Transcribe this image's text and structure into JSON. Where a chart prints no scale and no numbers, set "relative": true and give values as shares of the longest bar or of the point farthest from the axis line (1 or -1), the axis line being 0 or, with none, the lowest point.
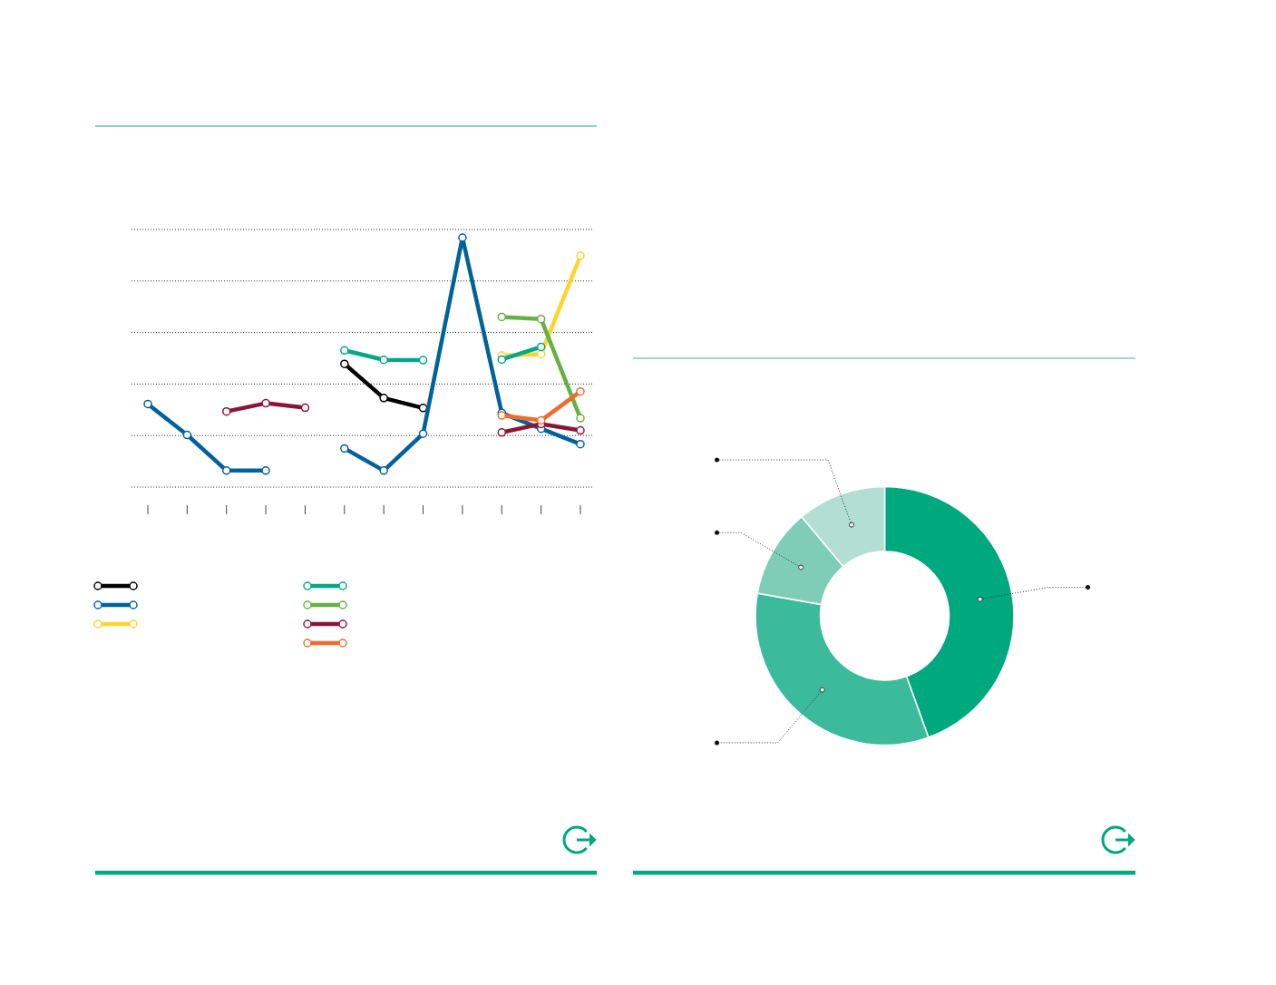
{
  "chart_data": [
    {
      "type": "line",
      "categories": [
        null,
        null,
        null,
        null,
        null,
        null,
        null,
        null,
        null,
        null,
        null,
        null
      ],
      "relative": true,
      "marker": "circle",
      "grid": "y",
      "series": [
        {
          "color": "#000000",
          "values": [
            null,
            null,
            null,
            null,
            null,
            0.494,
            0.357,
            0.317,
            null,
            null,
            null,
            null
          ]
        },
        {
          "color": "#00629b",
          "values": [
            0.333,
            0.209,
            0.066,
            0.066,
            null,
            0.155,
            0.066,
            0.214,
            1,
            0.297,
            0.234,
            0.172
          ]
        },
        {
          "color": "#ffd430",
          "values": [
            null,
            null,
            null,
            null,
            null,
            null,
            null,
            null,
            null,
            0.527,
            0.533,
            0.927
          ]
        },
        {
          "color": "#00a887",
          "values": [
            null,
            null,
            null,
            null,
            null,
            0.548,
            0.51,
            0.509,
            null,
            0.511,
            0.562,
            null
          ]
        },
        {
          "color": "#67b045",
          "values": [
            null,
            null,
            null,
            null,
            null,
            null,
            null,
            null,
            null,
            0.682,
            0.674,
            0.276
          ]
        },
        {
          "color": "#8a1538",
          "values": [
            null,
            null,
            0.303,
            0.336,
            0.318,
            null,
            null,
            null,
            null,
            0.219,
            0.253,
            0.227
          ]
        },
        {
          "color": "#f26b2c",
          "values": [
            null,
            null,
            null,
            null,
            null,
            null,
            null,
            null,
            null,
            0.287,
            0.267,
            0.383
          ]
        }
      ]
    },
    {
      "type": "donut",
      "categories": [
        null,
        null,
        null,
        null
      ],
      "values": [
        44.5,
        33.3,
        11.1,
        11.1
      ],
      "colors": [
        "#00a87e",
        "#3bbb9c",
        "#80cdb7",
        "#b2dfd2"
      ]
    }
  ]
}
